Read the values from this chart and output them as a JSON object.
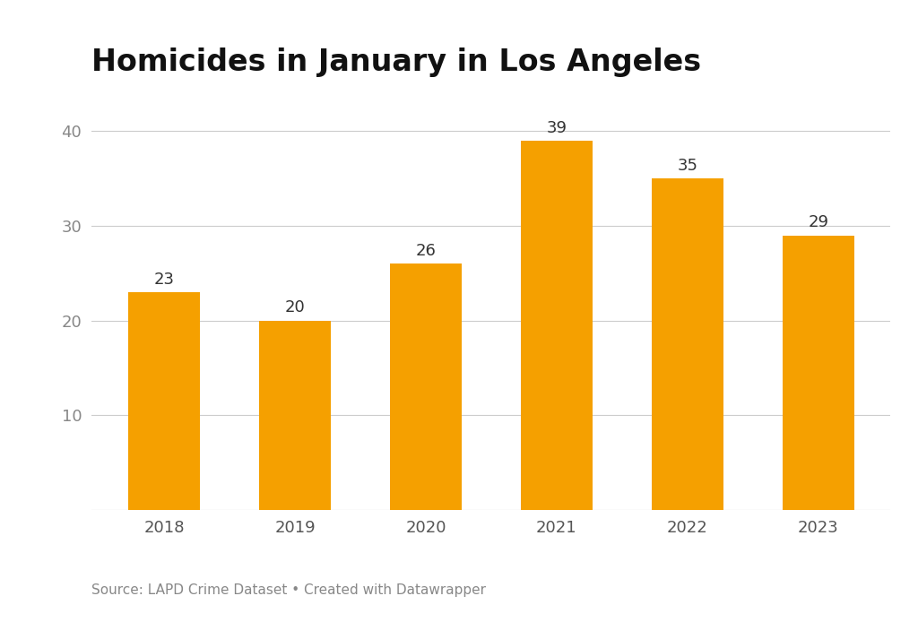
{
  "categories": [
    "2018",
    "2019",
    "2020",
    "2021",
    "2022",
    "2023"
  ],
  "values": [
    23,
    20,
    26,
    39,
    35,
    29
  ],
  "bar_color": "#F5A000",
  "title": "Homicides in January in Los Angeles",
  "title_fontsize": 24,
  "title_fontweight": "bold",
  "ylabel_ticks": [
    10,
    20,
    30,
    40
  ],
  "ylim": [
    0,
    44
  ],
  "background_color": "#ffffff",
  "grid_color": "#cccccc",
  "tick_label_color": "#888888",
  "source_text": "Source: LAPD Crime Dataset • Created with Datawrapper",
  "source_fontsize": 11,
  "bar_label_fontsize": 13,
  "bar_label_color": "#333333",
  "xlabel_fontsize": 13,
  "xlabel_color": "#555555"
}
